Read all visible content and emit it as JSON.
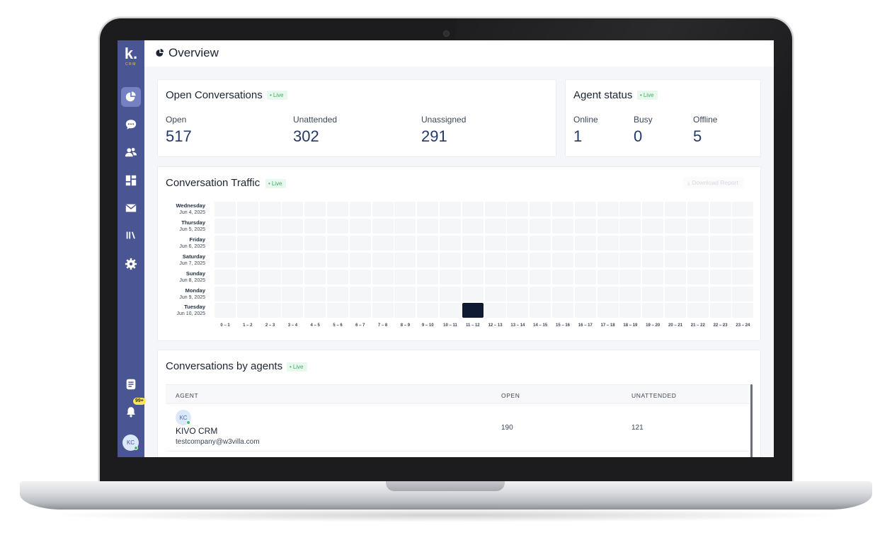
{
  "app": {
    "logo_text": "k.",
    "logo_sub": "CRM",
    "notification_count": "99+",
    "user_initials": "KC"
  },
  "sidebar": {
    "items": [
      {
        "name": "overview",
        "icon": "pie-chart-icon",
        "active": true
      },
      {
        "name": "conversations",
        "icon": "chat-bubble-icon",
        "active": false
      },
      {
        "name": "contacts",
        "icon": "users-icon",
        "active": false
      },
      {
        "name": "dashboard",
        "icon": "dashboard-icon",
        "active": false
      },
      {
        "name": "campaigns",
        "icon": "mail-icon",
        "active": false
      },
      {
        "name": "library",
        "icon": "library-icon",
        "active": false
      },
      {
        "name": "settings",
        "icon": "gear-icon",
        "active": false
      }
    ],
    "bottom_items": [
      {
        "name": "notes",
        "icon": "document-icon"
      },
      {
        "name": "notifications",
        "icon": "bell-icon"
      }
    ]
  },
  "header": {
    "title": "Overview"
  },
  "open_conversations": {
    "title": "Open Conversations",
    "live_label": "Live",
    "stats": [
      {
        "label": "Open",
        "value": "517"
      },
      {
        "label": "Unattended",
        "value": "302"
      },
      {
        "label": "Unassigned",
        "value": "291"
      }
    ]
  },
  "agent_status": {
    "title": "Agent status",
    "live_label": "Live",
    "stats": [
      {
        "label": "Online",
        "value": "1"
      },
      {
        "label": "Busy",
        "value": "0"
      },
      {
        "label": "Offline",
        "value": "5"
      }
    ]
  },
  "traffic": {
    "title": "Conversation Traffic",
    "live_label": "Live",
    "download_label": "Download Report",
    "days": [
      {
        "name": "Wednesday",
        "date": "Jun 4, 2025"
      },
      {
        "name": "Thursday",
        "date": "Jun 5, 2025"
      },
      {
        "name": "Friday",
        "date": "Jun 6, 2025"
      },
      {
        "name": "Saturday",
        "date": "Jun 7, 2025"
      },
      {
        "name": "Sunday",
        "date": "Jun 8, 2025"
      },
      {
        "name": "Monday",
        "date": "Jun 9, 2025"
      },
      {
        "name": "Tuesday",
        "date": "Jun 10, 2025"
      }
    ],
    "hours": [
      "0 – 1",
      "1 – 2",
      "2 – 3",
      "3 – 4",
      "4 – 5",
      "5 – 6",
      "6 – 7",
      "7 – 8",
      "8 – 9",
      "9 – 10",
      "10 – 11",
      "11 – 12",
      "12 – 13",
      "13 – 14",
      "14 – 15",
      "15 – 16",
      "16 – 17",
      "17 – 18",
      "18 – 19",
      "19 – 20",
      "20 – 21",
      "21 – 22",
      "22 – 23",
      "23 – 24"
    ],
    "hot_cells": [
      {
        "day": 6,
        "hour": 11
      }
    ]
  },
  "agents": {
    "title": "Conversations by agents",
    "live_label": "Live",
    "columns": [
      "AGENT",
      "OPEN",
      "UNATTENDED"
    ],
    "rows": [
      {
        "initials": "KC",
        "name": "KIVO CRM",
        "email": "testcompany@w3villa.com",
        "open": "190",
        "unattended": "121"
      }
    ]
  },
  "colors": {
    "sidebar": "#4a5694",
    "accent_active": "#7482c4",
    "live_green": "#3cae63",
    "stat_value": "#23386b",
    "heatmap_hot": "#0e1b33"
  }
}
